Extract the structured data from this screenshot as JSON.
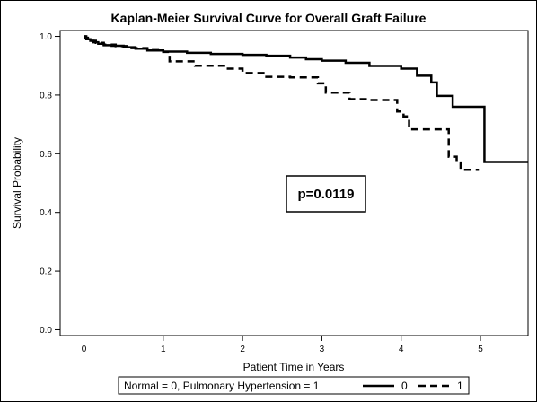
{
  "chart_data": {
    "type": "line",
    "title": "Kaplan-Meier Survival Curve for Overall Graft Failure",
    "xlabel": "Patient Time in Years",
    "ylabel": "Survival Probability",
    "xlim": [
      -0.3,
      5.6
    ],
    "ylim": [
      -0.02,
      1.02
    ],
    "x_ticks": [
      0,
      1,
      2,
      3,
      4,
      5
    ],
    "y_ticks": [
      0.0,
      0.2,
      0.4,
      0.6,
      0.8,
      1.0
    ],
    "x_tick_labels": [
      "0",
      "1",
      "2",
      "3",
      "4",
      "5"
    ],
    "y_tick_labels": [
      "0.0",
      "0.2",
      "0.4",
      "0.6",
      "0.8",
      "1.0"
    ],
    "grid": false,
    "annotation": "p=0.0119",
    "legend": {
      "title": "Normal = 0, Pulmonary Hypertension = 1",
      "placement": "bottom"
    },
    "series": [
      {
        "name": "0",
        "line_style": "solid",
        "x": [
          0.0,
          0.02,
          0.05,
          0.08,
          0.12,
          0.18,
          0.25,
          0.35,
          0.5,
          0.65,
          0.8,
          1.0,
          1.3,
          1.6,
          2.0,
          2.3,
          2.6,
          2.8,
          3.0,
          3.3,
          3.6,
          4.0,
          4.2,
          4.38,
          4.45,
          4.65,
          5.05,
          5.6
        ],
        "y": [
          1.0,
          0.995,
          0.99,
          0.985,
          0.98,
          0.975,
          0.97,
          0.968,
          0.963,
          0.958,
          0.952,
          0.948,
          0.944,
          0.94,
          0.937,
          0.934,
          0.928,
          0.922,
          0.917,
          0.91,
          0.899,
          0.89,
          0.866,
          0.843,
          0.797,
          0.76,
          0.572,
          0.572
        ]
      },
      {
        "name": "1",
        "line_style": "dashed",
        "x": [
          0.0,
          0.03,
          0.08,
          0.15,
          0.25,
          0.4,
          0.6,
          0.8,
          1.0,
          1.08,
          1.4,
          1.8,
          2.0,
          2.3,
          2.6,
          2.95,
          3.05,
          3.35,
          3.6,
          3.95,
          4.03,
          4.1,
          4.6,
          4.7,
          4.75,
          4.98
        ],
        "y": [
          1.0,
          0.99,
          0.985,
          0.978,
          0.972,
          0.967,
          0.96,
          0.953,
          0.947,
          0.915,
          0.9,
          0.89,
          0.875,
          0.862,
          0.86,
          0.84,
          0.808,
          0.786,
          0.783,
          0.744,
          0.727,
          0.683,
          0.59,
          0.57,
          0.545,
          0.545
        ]
      }
    ]
  }
}
